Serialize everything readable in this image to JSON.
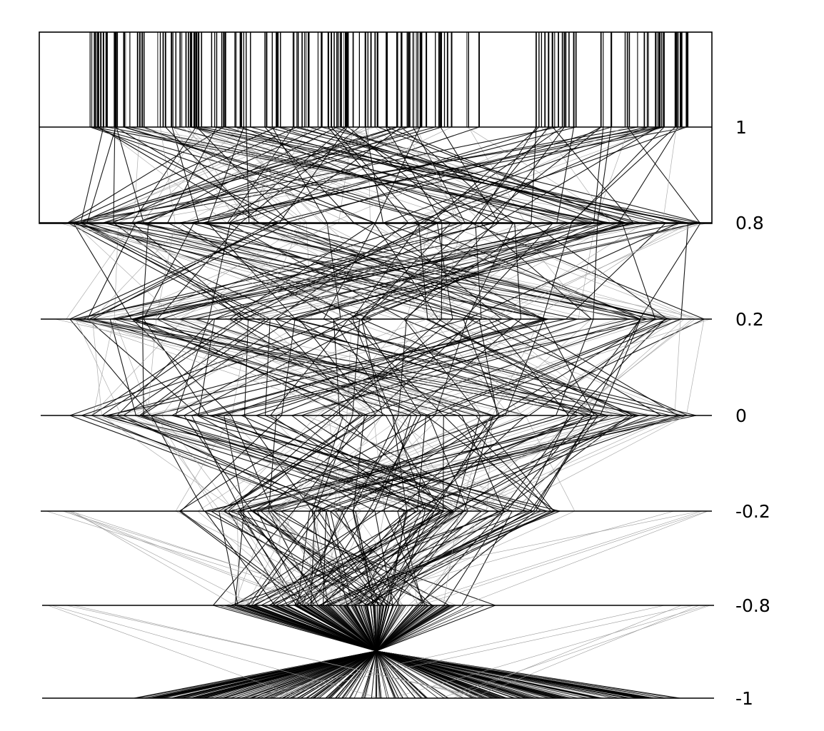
{
  "diagram": {
    "type": "parallel-coordinates",
    "levels": [
      {
        "value": 1,
        "label": "1"
      },
      {
        "value": 0.8,
        "label": "0.8"
      },
      {
        "value": 0.2,
        "label": "0.2"
      },
      {
        "value": 0,
        "label": "0"
      },
      {
        "value": -0.2,
        "label": "-0.2"
      },
      {
        "value": -0.8,
        "label": "-0.8"
      },
      {
        "value": -1,
        "label": "-1"
      }
    ],
    "line_count": 150,
    "colors": {
      "strong": "#000000",
      "faint": "#9a9a9a",
      "background": "#ffffff"
    }
  }
}
